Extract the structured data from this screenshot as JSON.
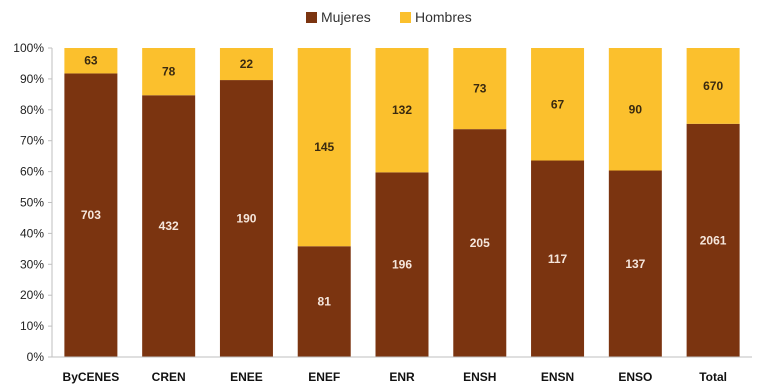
{
  "chart_data": {
    "type": "bar",
    "stacked": "percent",
    "categories": [
      "ByCENES",
      "CREN",
      "ENEE",
      "ENEF",
      "ENR",
      "ENSH",
      "ENSN",
      "ENSO",
      "Total"
    ],
    "series": [
      {
        "name": "Mujeres",
        "color": "#7b3410",
        "values": [
          703,
          432,
          190,
          81,
          196,
          205,
          117,
          137,
          2061
        ]
      },
      {
        "name": "Hombres",
        "color": "#fbc02d",
        "values": [
          63,
          78,
          22,
          145,
          132,
          73,
          67,
          90,
          670
        ]
      }
    ],
    "y_ticks": [
      "0%",
      "10%",
      "20%",
      "30%",
      "40%",
      "50%",
      "60%",
      "70%",
      "80%",
      "90%",
      "100%"
    ],
    "ylim": [
      0,
      100
    ],
    "grid": false,
    "legend_position": "top-center",
    "label_colors": {
      "Mujeres": "#f5e6dc",
      "Hombres": "#3a2a10"
    }
  }
}
